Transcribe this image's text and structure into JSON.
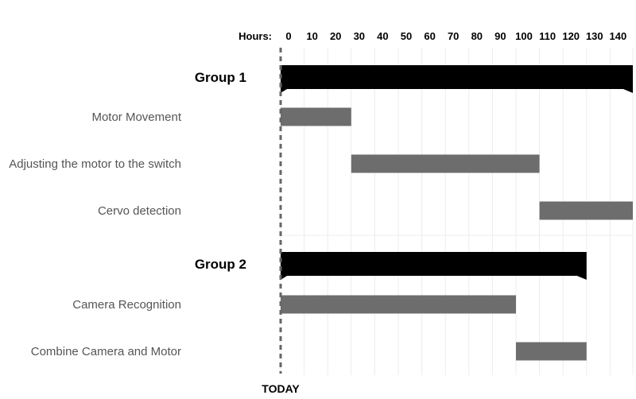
{
  "chart_data": {
    "type": "gantt",
    "axis_label": "Hours:",
    "xlim": [
      0,
      150
    ],
    "ticks": [
      0,
      10,
      20,
      30,
      40,
      50,
      60,
      70,
      80,
      90,
      100,
      110,
      120,
      130,
      140
    ],
    "today_label": "TODAY",
    "today_value": 0,
    "rows": [
      {
        "kind": "group",
        "label": "Group 1",
        "start": 0,
        "end": 150
      },
      {
        "kind": "task",
        "label": "Motor Movement",
        "start": 0,
        "end": 30
      },
      {
        "kind": "task",
        "label": "Adjusting the motor to the switch",
        "start": 30,
        "end": 110
      },
      {
        "kind": "task",
        "label": "Cervo detection",
        "start": 110,
        "end": 150
      },
      {
        "kind": "group",
        "label": "Group 2",
        "start": 0,
        "end": 130
      },
      {
        "kind": "task",
        "label": "Camera Recognition",
        "start": 0,
        "end": 100
      },
      {
        "kind": "task",
        "label": "Combine Camera and Motor",
        "start": 100,
        "end": 130
      }
    ],
    "colors": {
      "group_bar": "#000000",
      "task_bar": "#6d6d6d",
      "grid": "#ececec",
      "today_line": "#666666",
      "task_label": "#555555"
    }
  }
}
